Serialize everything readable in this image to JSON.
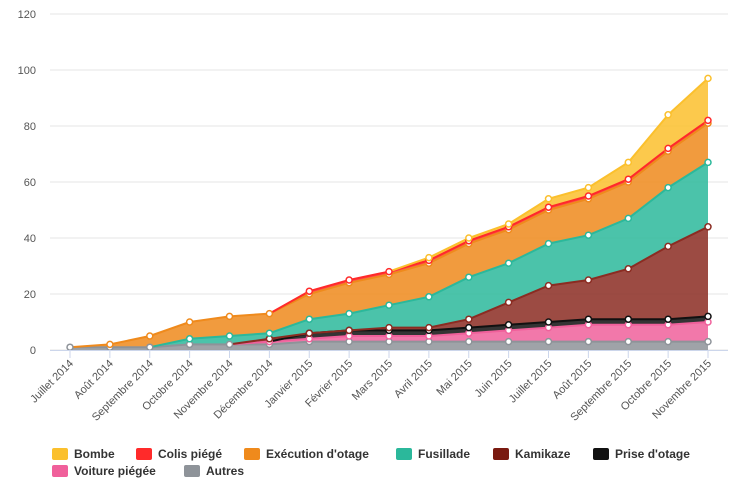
{
  "chart_data": {
    "type": "area",
    "stacked": true,
    "title": "",
    "xlabel": "",
    "ylabel": "",
    "ylim": [
      0,
      120
    ],
    "yticks": [
      0,
      20,
      40,
      60,
      80,
      100,
      120
    ],
    "grid": true,
    "legend_position": "bottom",
    "categories": [
      "Juillet 2014",
      "Août 2014",
      "Septembre 2014",
      "Octobre 2014",
      "Novembre 2014",
      "Décembre 2014",
      "Janvier 2015",
      "Février 2015",
      "Mars 2015",
      "Avril 2015",
      "Mai 2015",
      "Juin 2015",
      "Juillet 2015",
      "Août 2015",
      "Septembre 2015",
      "Octobre 2015",
      "Novembre 2015"
    ],
    "series": [
      {
        "name": "Autres",
        "color": "#8e9399",
        "values": [
          1,
          1,
          1,
          2,
          2,
          2,
          3,
          3,
          3,
          3,
          3,
          3,
          3,
          3,
          3,
          3,
          3
        ]
      },
      {
        "name": "Voiture piégée",
        "color": "#f0609b",
        "values": [
          0,
          0,
          0,
          0,
          0,
          1,
          1,
          2,
          2,
          2,
          3,
          4,
          5,
          6,
          6,
          6,
          7
        ]
      },
      {
        "name": "Prise d'otage",
        "color": "#111111",
        "values": [
          0,
          0,
          0,
          0,
          0,
          0,
          2,
          2,
          2,
          2,
          2,
          2,
          2,
          2,
          2,
          2,
          2
        ]
      },
      {
        "name": "Kamikaze",
        "color": "#8b2c22",
        "values": [
          0,
          0,
          0,
          0,
          0,
          1,
          0,
          0,
          1,
          1,
          3,
          8,
          13,
          14,
          18,
          26,
          32
        ]
      },
      {
        "name": "Fusillade",
        "color": "#2bb89b",
        "values": [
          0,
          0,
          0,
          2,
          3,
          2,
          5,
          6,
          8,
          11,
          15,
          14,
          15,
          16,
          18,
          21,
          23
        ]
      },
      {
        "name": "Exécution d'otage",
        "color": "#ef8a1c",
        "values": [
          0,
          1,
          4,
          6,
          7,
          7,
          9,
          11,
          11,
          12,
          12,
          12,
          12,
          13,
          13,
          13,
          14
        ]
      },
      {
        "name": "Colis piégé",
        "color": "#ff2a2a",
        "values": [
          0,
          0,
          0,
          0,
          0,
          0,
          1,
          1,
          1,
          1,
          1,
          1,
          1,
          1,
          1,
          1,
          1
        ]
      },
      {
        "name": "Bombe",
        "color": "#fbc02d",
        "values": [
          0,
          0,
          0,
          0,
          0,
          0,
          0,
          0,
          0,
          1,
          1,
          1,
          3,
          3,
          6,
          12,
          15
        ]
      }
    ]
  },
  "legend": {
    "row1": [
      {
        "label": "Bombe",
        "color": "#fbc02d"
      },
      {
        "label": "Colis piégé",
        "color": "#ff2a2a"
      },
      {
        "label": "Exécution d'otage",
        "color": "#ef8a1c"
      },
      {
        "label": "Fusillade",
        "color": "#2bb89b"
      },
      {
        "label": "Kamikaze",
        "color": "#7a1a10"
      },
      {
        "label": "Prise d'otage",
        "color": "#111111"
      }
    ],
    "row2": [
      {
        "label": "Voiture piégée",
        "color": "#f0609b"
      },
      {
        "label": "Autres",
        "color": "#8e9399"
      }
    ]
  }
}
